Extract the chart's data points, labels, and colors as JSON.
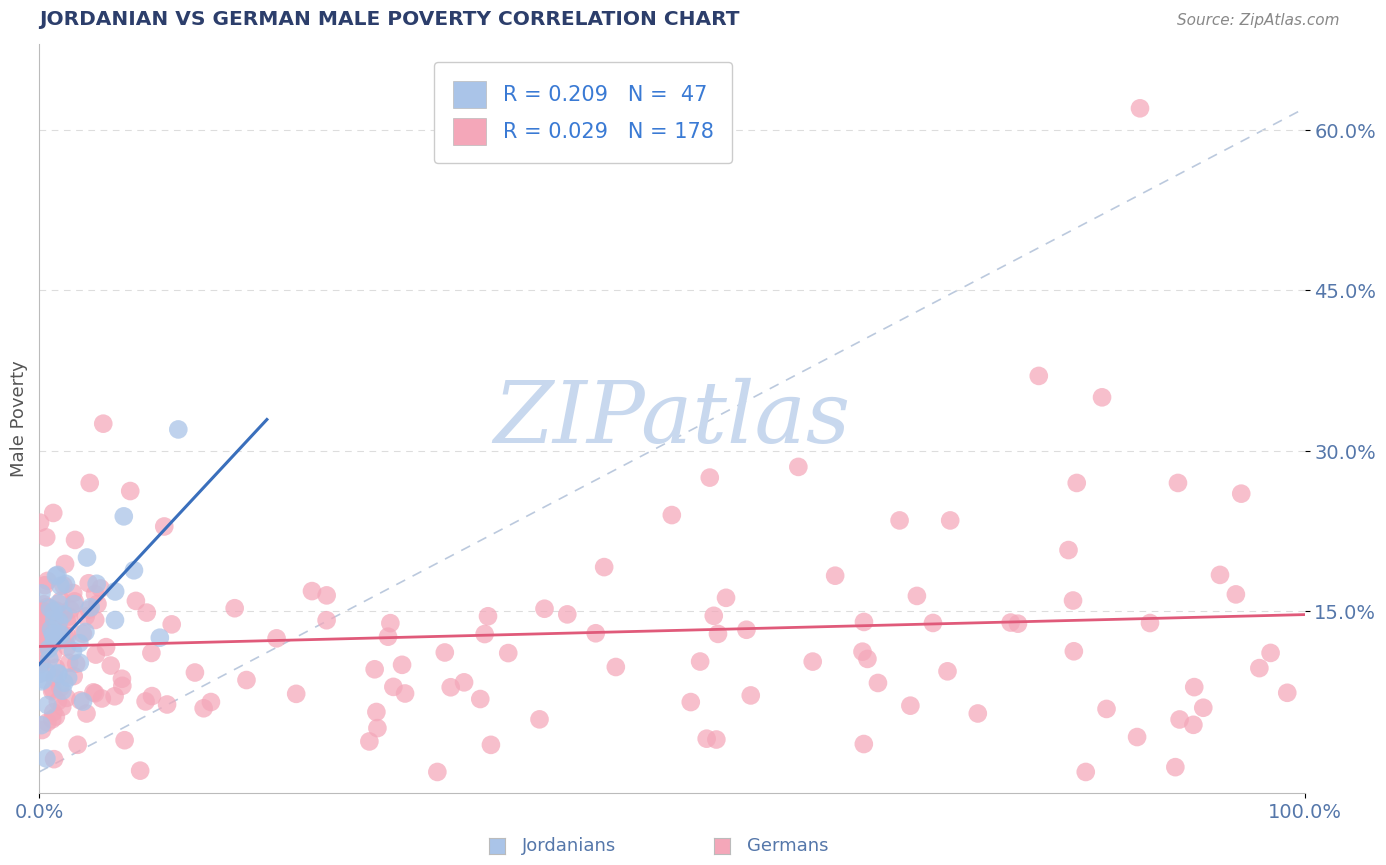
{
  "title": "JORDANIAN VS GERMAN MALE POVERTY CORRELATION CHART",
  "source": "Source: ZipAtlas.com",
  "ylabel": "Male Poverty",
  "xlim": [
    0.0,
    1.0
  ],
  "ylim": [
    -0.02,
    0.68
  ],
  "yticks": [
    0.15,
    0.3,
    0.45,
    0.6
  ],
  "ytick_labels": [
    "15.0%",
    "30.0%",
    "45.0%",
    "60.0%"
  ],
  "xticks": [
    0.0,
    1.0
  ],
  "xtick_labels": [
    "0.0%",
    "100.0%"
  ],
  "jordanian_R": 0.209,
  "jordanian_N": 47,
  "german_R": 0.029,
  "german_N": 178,
  "jordanian_color": "#aac4e8",
  "german_color": "#f4a7b9",
  "jordanian_line_color": "#3a6fbc",
  "german_line_color": "#e05a7a",
  "title_color": "#2c3e6b",
  "tick_color": "#5577aa",
  "watermark_color": "#c8d8ee",
  "background_color": "#ffffff",
  "legend_R_color": "#3a7ad4",
  "grid_color": "#dddddd",
  "diag_color": "#b0c0d8"
}
